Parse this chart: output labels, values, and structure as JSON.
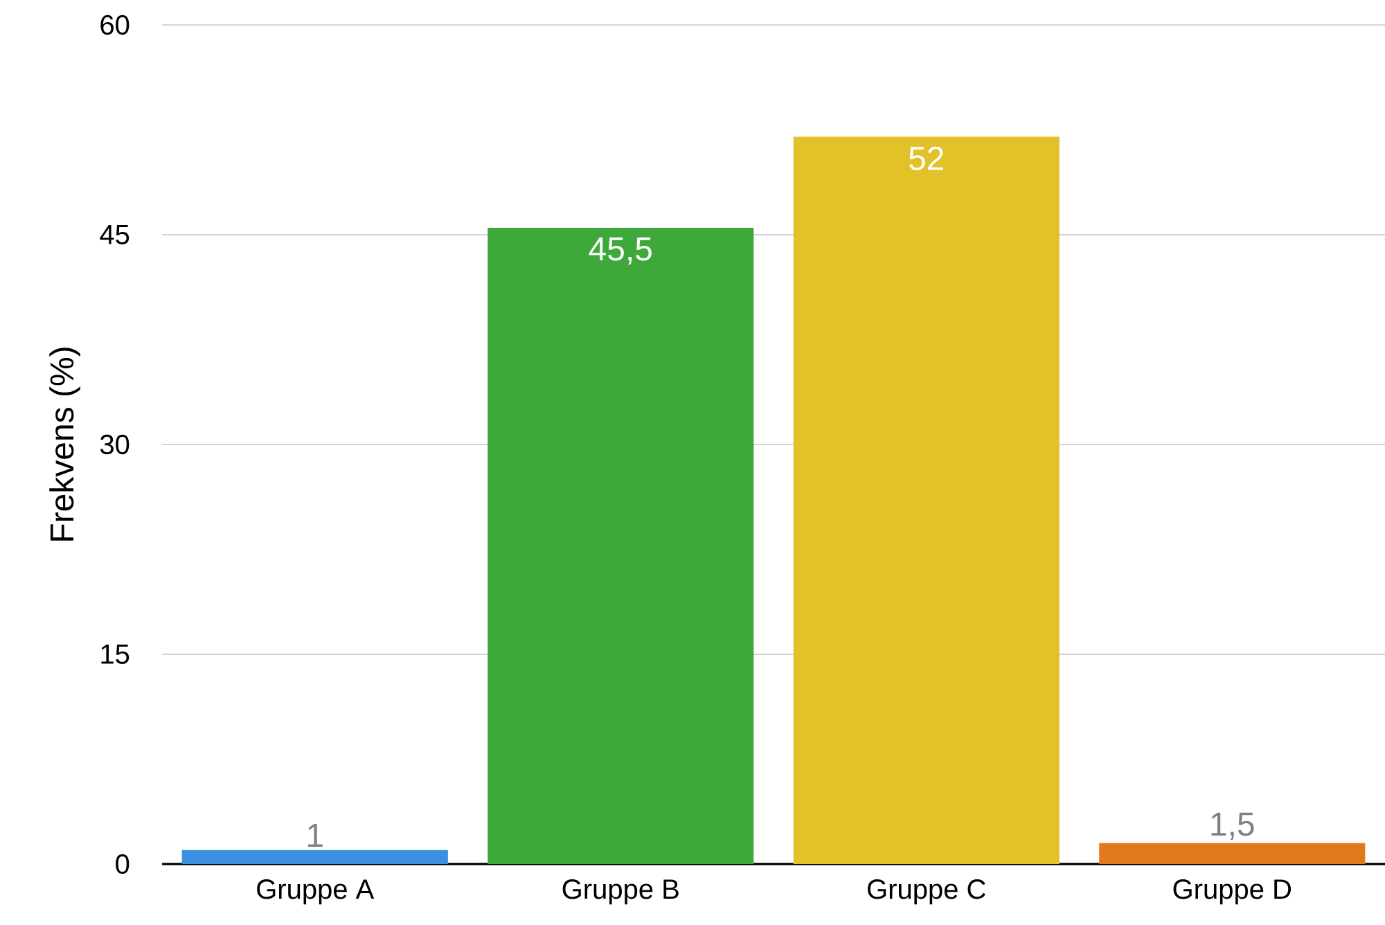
{
  "chart_data": {
    "type": "bar",
    "ylabel": "Frekvens (%)",
    "categories": [
      "Gruppe A",
      "Gruppe B",
      "Gruppe C",
      "Gruppe D"
    ],
    "values": [
      1,
      45.5,
      52,
      1.5
    ],
    "colors": [
      "#3a8fe0",
      "#3fa83a",
      "#e2c228",
      "#e07a1a"
    ],
    "value_labels": [
      "1",
      "45,5",
      "52",
      "1,5"
    ],
    "ylim": [
      0,
      60
    ],
    "yticks": [
      0,
      15,
      30,
      45,
      60
    ],
    "grid": "y"
  }
}
